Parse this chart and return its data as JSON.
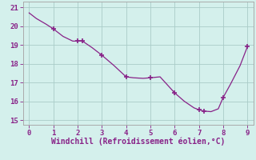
{
  "x": [
    0,
    0.3,
    0.7,
    1.0,
    1.4,
    1.8,
    2.0,
    2.2,
    2.6,
    3.0,
    3.5,
    4.0,
    4.3,
    4.7,
    5.0,
    5.4,
    6.0,
    6.4,
    6.8,
    7.0,
    7.2,
    7.5,
    7.8,
    8.0,
    8.3,
    8.7,
    9.0
  ],
  "y": [
    20.7,
    20.4,
    20.1,
    19.85,
    19.45,
    19.2,
    19.2,
    19.2,
    18.85,
    18.45,
    17.9,
    17.3,
    17.25,
    17.22,
    17.25,
    17.3,
    16.45,
    16.0,
    15.65,
    15.55,
    15.48,
    15.45,
    15.6,
    16.2,
    16.9,
    17.9,
    18.9
  ],
  "marker_x": [
    1.0,
    2.0,
    2.2,
    3.0,
    4.0,
    5.0,
    6.0,
    7.0,
    7.2,
    8.0,
    9.0
  ],
  "marker_y": [
    19.85,
    19.2,
    19.2,
    18.45,
    17.3,
    17.25,
    16.45,
    15.55,
    15.48,
    16.2,
    18.9
  ],
  "line_color": "#882288",
  "marker_color": "#882288",
  "bg_color": "#d4f0ec",
  "grid_color": "#aaccc8",
  "axis_color": "#aaaaaa",
  "xlabel": "Windchill (Refroidissement éolien,°C)",
  "xlim": [
    -0.25,
    9.25
  ],
  "ylim": [
    14.75,
    21.3
  ],
  "xticks": [
    0,
    1,
    2,
    3,
    4,
    5,
    6,
    7,
    8,
    9
  ],
  "yticks": [
    15,
    16,
    17,
    18,
    19,
    20,
    21
  ],
  "label_color": "#882288",
  "tick_color": "#882288",
  "font_size": 6.5,
  "xlabel_fontsize": 7.0
}
